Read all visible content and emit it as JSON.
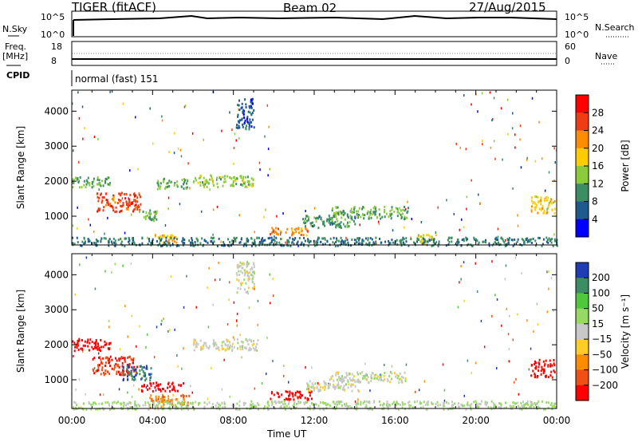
{
  "header": {
    "radar": "TIGER (fitACF)",
    "beam": "Beam 02",
    "date": "27/Aug/2015"
  },
  "top_panels": {
    "nsky_label": "N.Sky",
    "nsearch_label": "N.Search",
    "nsky_ticks": [
      "10^5",
      "10^0"
    ],
    "nsearch_ticks": [
      "10^5",
      "10^0"
    ],
    "freq_label": "Freq.",
    "freq_unit": "[MHz]",
    "freq_ticks": [
      "18",
      "8"
    ],
    "nave_label": "Nave",
    "nave_ticks": [
      "60",
      "0"
    ],
    "cpid_label": "CPID",
    "cpid_value": "normal (fast) 151"
  },
  "axes": {
    "xlabel": "Time UT",
    "ylabel": "Slant Range [km]",
    "x_ticks": [
      "00:00",
      "04:00",
      "08:00",
      "12:00",
      "16:00",
      "20:00",
      "00:00"
    ],
    "y_ticks": [
      "4000",
      "3000",
      "2000",
      "1000"
    ]
  },
  "colorbars": {
    "power": {
      "label": "Power [dB]",
      "ticks": [
        "28",
        "24",
        "20",
        "16",
        "12",
        "8",
        "4"
      ],
      "colors": [
        "#ff0000",
        "#f03c14",
        "#ff8c00",
        "#ffcc00",
        "#8ccc3c",
        "#3c8c64",
        "#1e5a8c",
        "#0000ff"
      ]
    },
    "velocity": {
      "label": "Velocity [m s⁻¹]",
      "ticks": [
        "200",
        "100",
        "50",
        "15",
        "−15",
        "−50",
        "−100",
        "−200"
      ],
      "colors": [
        "#1e3cb4",
        "#3c8c64",
        "#50c83c",
        "#98d864",
        "#c8c8c8",
        "#ffcc28",
        "#ff8c00",
        "#f05014",
        "#ff0000"
      ]
    }
  },
  "chart_data": [
    {
      "type": "heatmap",
      "title": "Power",
      "xlabel": "Time UT",
      "ylabel": "Slant Range [km]",
      "xlim": [
        0,
        24
      ],
      "ylim": [
        180,
        4600
      ],
      "clim": [
        0,
        32
      ],
      "patches": [
        {
          "t0": 0.0,
          "t1": 1.9,
          "r0": 1850,
          "r1": 2150,
          "v": 12
        },
        {
          "t0": 1.2,
          "t1": 3.4,
          "r0": 1150,
          "r1": 1700,
          "v": 26
        },
        {
          "t0": 3.3,
          "t1": 4.2,
          "r0": 900,
          "r1": 1200,
          "v": 12
        },
        {
          "t0": 4.2,
          "t1": 5.7,
          "r0": 1800,
          "r1": 2100,
          "v": 12
        },
        {
          "t0": 6.0,
          "t1": 9.0,
          "r0": 1850,
          "r1": 2200,
          "v": 14
        },
        {
          "t0": 8.1,
          "t1": 9.0,
          "r0": 3500,
          "r1": 4400,
          "v": 6
        },
        {
          "t0": 3.9,
          "t1": 5.2,
          "r0": 250,
          "r1": 500,
          "v": 20
        },
        {
          "t0": 9.7,
          "t1": 11.7,
          "r0": 480,
          "r1": 700,
          "v": 22
        },
        {
          "t0": 11.4,
          "t1": 14.0,
          "r0": 700,
          "r1": 1050,
          "v": 10
        },
        {
          "t0": 12.7,
          "t1": 16.7,
          "r0": 950,
          "r1": 1300,
          "v": 12
        },
        {
          "t0": 17.0,
          "t1": 18.0,
          "r0": 250,
          "r1": 500,
          "v": 16
        },
        {
          "t0": 22.7,
          "t1": 23.9,
          "r0": 1100,
          "r1": 1600,
          "v": 18
        },
        {
          "t0": 0.0,
          "t1": 24.0,
          "r0": 180,
          "r1": 420,
          "v": 8
        }
      ]
    },
    {
      "type": "heatmap",
      "title": "Velocity",
      "xlabel": "Time UT",
      "ylabel": "Slant Range [km]",
      "xlim": [
        0,
        24
      ],
      "ylim": [
        180,
        4600
      ],
      "clim": [
        -200,
        200
      ],
      "patches": [
        {
          "t0": 0.0,
          "t1": 1.9,
          "r0": 1850,
          "r1": 2200,
          "v": -200
        },
        {
          "t0": 1.0,
          "t1": 3.2,
          "r0": 1150,
          "r1": 1700,
          "v": -150
        },
        {
          "t0": 2.4,
          "t1": 3.9,
          "r0": 1000,
          "r1": 1450,
          "v": 150
        },
        {
          "t0": 3.4,
          "t1": 5.5,
          "r0": 700,
          "r1": 950,
          "v": -200
        },
        {
          "t0": 3.8,
          "t1": 5.8,
          "r0": 250,
          "r1": 600,
          "v": -100
        },
        {
          "t0": 6.0,
          "t1": 9.2,
          "r0": 1850,
          "r1": 2200,
          "v": 0
        },
        {
          "t0": 8.1,
          "t1": 9.0,
          "r0": 3500,
          "r1": 4400,
          "v": 0
        },
        {
          "t0": 9.8,
          "t1": 12.0,
          "r0": 450,
          "r1": 700,
          "v": -200
        },
        {
          "t0": 11.6,
          "t1": 14.2,
          "r0": 700,
          "r1": 1050,
          "v": 0
        },
        {
          "t0": 12.8,
          "t1": 16.5,
          "r0": 950,
          "r1": 1250,
          "v": 0
        },
        {
          "t0": 22.7,
          "t1": 23.9,
          "r0": 1100,
          "r1": 1600,
          "v": -200
        },
        {
          "t0": 0.0,
          "t1": 24.0,
          "r0": 180,
          "r1": 420,
          "v": 30
        }
      ]
    }
  ]
}
